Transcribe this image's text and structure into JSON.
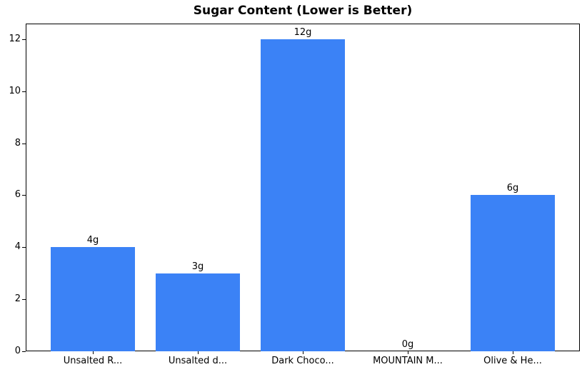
{
  "chart_data": {
    "type": "bar",
    "title": "Sugar Content (Lower is Better)",
    "categories": [
      "Unsalted R...",
      "Unsalted d...",
      "Dark Choco...",
      "MOUNTAIN M...",
      "Olive & He..."
    ],
    "values": [
      4,
      3,
      12,
      0,
      6
    ],
    "bar_labels": [
      "4g",
      "3g",
      "12g",
      "0g",
      "6g"
    ],
    "xlabel": "",
    "ylabel": "",
    "yticks": [
      0,
      2,
      4,
      6,
      8,
      10,
      12
    ],
    "ylim": [
      0,
      12.6
    ],
    "grid": false,
    "legend": "none",
    "bar_color": "#3b82f6",
    "axis_color": "#000000",
    "text_color": "#000000",
    "background_color": "#ffffff"
  }
}
